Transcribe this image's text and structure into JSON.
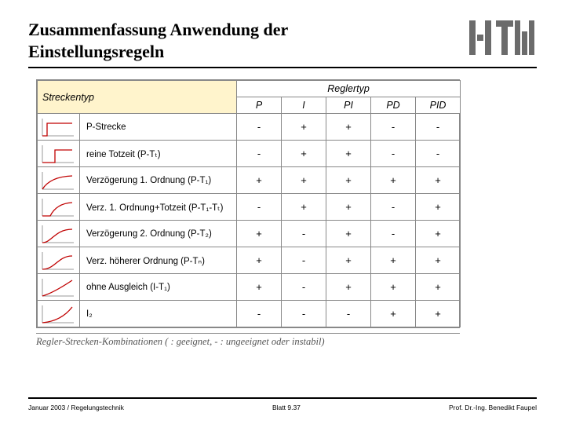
{
  "title_line1": "Zusammenfassung Anwendung der",
  "title_line2": "Einstellungsregeln",
  "header": {
    "streckentyp": "Streckentyp",
    "reglertyp": "Reglertyp",
    "cols": [
      "P",
      "I",
      "PI",
      "PD",
      "PID"
    ]
  },
  "rows": [
    {
      "name": "P-Strecke",
      "icon": "step-flat",
      "vals": [
        "-",
        "+",
        "+",
        "-",
        "-"
      ]
    },
    {
      "name": "reine Totzeit (P-Tₜ)",
      "icon": "step-dead",
      "vals": [
        "-",
        "+",
        "+",
        "-",
        "-"
      ]
    },
    {
      "name": "Verzögerung 1. Ordnung (P-T₁)",
      "icon": "pt1",
      "vals": [
        "+",
        "+",
        "+",
        "+",
        "+"
      ]
    },
    {
      "name": "Verz. 1. Ordnung+Totzeit (P-T₁-Tₜ)",
      "icon": "pt1-dead",
      "vals": [
        "-",
        "+",
        "+",
        "-",
        "+"
      ]
    },
    {
      "name": "Verzögerung 2. Ordnung (P-T₂)",
      "icon": "pt2",
      "vals": [
        "+",
        "-",
        "+",
        "-",
        "+"
      ]
    },
    {
      "name": "Verz. höherer Ordnung (P-Tₙ)",
      "icon": "ptn",
      "vals": [
        "+",
        "-",
        "+",
        "+",
        "+"
      ]
    },
    {
      "name": "ohne Ausgleich (I-T₁)",
      "icon": "it1",
      "vals": [
        "+",
        "-",
        "+",
        "+",
        "+"
      ]
    },
    {
      "name": "I₂",
      "icon": "i2",
      "vals": [
        "-",
        "-",
        "-",
        "+",
        "+"
      ]
    }
  ],
  "caption": "Regler-Strecken-Kombinationen ( : geeignet, - : ungeeignet oder instabil)",
  "footer": {
    "left": "Januar 2003 / Regelungstechnik",
    "center": "Blatt 9.37",
    "right": "Prof. Dr.-Ing. Benedikt Faupel"
  },
  "colors": {
    "header_bg": "#fff4cc",
    "curve": "#c00000",
    "axis": "#999999",
    "border": "#888888",
    "rule": "#000000"
  }
}
